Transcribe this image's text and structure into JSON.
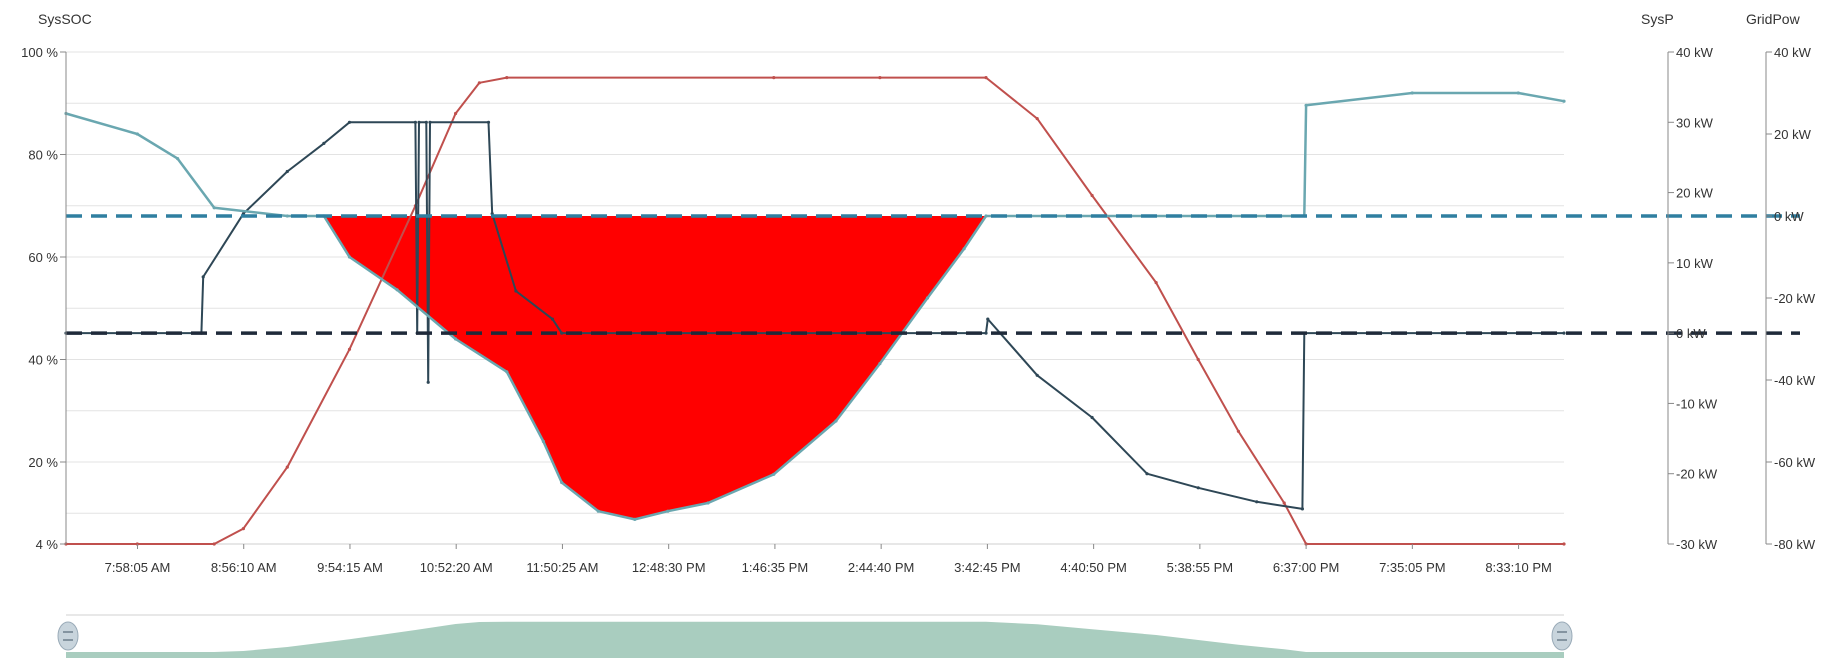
{
  "chart_data": {
    "type": "line",
    "title": "",
    "axes": {
      "soc": {
        "title": "SysSOC",
        "ticks": [
          "100 %",
          "80 %",
          "60 %",
          "40 %",
          "20 %",
          "4 %"
        ],
        "tick_values": [
          100,
          80,
          60,
          40,
          20,
          4
        ],
        "ylim": [
          4,
          100
        ]
      },
      "sysp": {
        "title": "SysP",
        "ticks": [
          "40 kW",
          "30 kW",
          "20 kW",
          "10 kW",
          "0 kW",
          "-10 kW",
          "-20 kW",
          "-30 kW"
        ],
        "tick_values": [
          40,
          30,
          20,
          10,
          0,
          -10,
          -20,
          -30
        ],
        "ylim": [
          -30,
          40
        ]
      },
      "grid": {
        "title": "GridPow",
        "ticks": [
          "40 kW",
          "20 kW",
          "0 kW",
          "-20 kW",
          "-40 kW",
          "-60 kW",
          "-80 kW"
        ],
        "tick_values": [
          40,
          20,
          0,
          -20,
          -40,
          -60,
          -80
        ],
        "ylim": [
          -80,
          40
        ]
      },
      "x": {
        "ticks": [
          "7:58:05 AM",
          "8:56:10 AM",
          "9:54:15 AM",
          "10:52:20 AM",
          "11:50:25 AM",
          "12:48:30 PM",
          "1:46:35 PM",
          "2:44:40 PM",
          "3:42:45 PM",
          "4:40:50 PM",
          "5:38:55 PM",
          "6:37:00 PM",
          "7:35:05 PM",
          "8:33:10 PM"
        ],
        "range": [
          "7:19:00 AM",
          "8:58:00 PM"
        ]
      }
    },
    "series": [
      {
        "axis": "soc",
        "color": "#c0504d",
        "points": [
          [
            "7:19 AM",
            4
          ],
          [
            "7:58 AM",
            4
          ],
          [
            "8:40 AM",
            4
          ],
          [
            "8:56 AM",
            7
          ],
          [
            "9:20 AM",
            19
          ],
          [
            "9:54 AM",
            42
          ],
          [
            "10:30 AM",
            70
          ],
          [
            "10:52 AM",
            88
          ],
          [
            "11:05 AM",
            94
          ],
          [
            "11:20 AM",
            95
          ],
          [
            "1:46 PM",
            95
          ],
          [
            "2:44 PM",
            95
          ],
          [
            "3:42 PM",
            95
          ],
          [
            "4:10 PM",
            87
          ],
          [
            "4:40 PM",
            72
          ],
          [
            "5:15 PM",
            55
          ],
          [
            "5:38 PM",
            40
          ],
          [
            "6:00 PM",
            26
          ],
          [
            "6:25 PM",
            12
          ],
          [
            "6:37 PM",
            4
          ],
          [
            "8:58 PM",
            4
          ]
        ]
      },
      {
        "axis": "sysp",
        "color": "#2e4756",
        "points": [
          [
            "7:19 AM",
            0
          ],
          [
            "8:33 AM",
            0
          ],
          [
            "8:34 AM",
            8
          ],
          [
            "8:56 AM",
            17
          ],
          [
            "9:20 AM",
            23
          ],
          [
            "9:40 AM",
            27
          ],
          [
            "9:54 AM",
            30
          ],
          [
            "10:30 AM",
            30
          ],
          [
            "10:31 AM",
            0
          ],
          [
            "10:32 AM",
            30
          ],
          [
            "10:36 AM",
            30
          ],
          [
            "10:37 AM",
            -7
          ],
          [
            "10:38 AM",
            30
          ],
          [
            "11:10 AM",
            30
          ],
          [
            "11:12 AM",
            17
          ],
          [
            "11:25 AM",
            6
          ],
          [
            "11:45 AM",
            2
          ],
          [
            "11:50 AM",
            0
          ],
          [
            "3:42 PM",
            0
          ],
          [
            "3:43 PM",
            2
          ],
          [
            "4:10 PM",
            -6
          ],
          [
            "4:40 PM",
            -12
          ],
          [
            "5:10 PM",
            -20
          ],
          [
            "5:38 PM",
            -22
          ],
          [
            "6:10 PM",
            -24
          ],
          [
            "6:35 PM",
            -25
          ],
          [
            "6:36 PM",
            0
          ],
          [
            "8:58 PM",
            0
          ]
        ]
      },
      {
        "axis": "grid",
        "color": "#6aa7b0",
        "points": [
          [
            "7:19 AM",
            25
          ],
          [
            "7:58 AM",
            20
          ],
          [
            "8:20 AM",
            14
          ],
          [
            "8:40 AM",
            2
          ],
          [
            "9:20 AM",
            0
          ],
          [
            "9:40 AM",
            0
          ],
          [
            "9:54 AM",
            -10
          ],
          [
            "10:20 AM",
            -18
          ],
          [
            "10:52 AM",
            -30
          ],
          [
            "11:20 AM",
            -38
          ],
          [
            "11:40 AM",
            -55
          ],
          [
            "11:50 AM",
            -65
          ],
          [
            "12:10 PM",
            -72
          ],
          [
            "12:30 PM",
            -74
          ],
          [
            "12:48 PM",
            -72
          ],
          [
            "1:10 PM",
            -70
          ],
          [
            "1:46 PM",
            -63
          ],
          [
            "2:20 PM",
            -50
          ],
          [
            "2:44 PM",
            -36
          ],
          [
            "3:10 PM",
            -20
          ],
          [
            "3:30 PM",
            -8
          ],
          [
            "3:42 PM",
            0
          ],
          [
            "4:40 PM",
            0
          ],
          [
            "5:38 PM",
            0
          ],
          [
            "6:30 PM",
            0
          ],
          [
            "6:36 PM",
            0
          ],
          [
            "6:37 PM",
            27
          ],
          [
            "7:35 PM",
            30
          ],
          [
            "8:33 PM",
            30
          ],
          [
            "8:58 PM",
            28
          ]
        ]
      }
    ],
    "reference_lines": [
      {
        "axis": "grid",
        "value": 0,
        "color": "#2f7fa0",
        "style": "dashed"
      },
      {
        "axis": "sysp",
        "value": 0,
        "color": "#1f2a3a",
        "style": "dashed"
      }
    ],
    "shaded_area": {
      "color": "#ff0000",
      "between": "grid series and GridPow 0 kW line",
      "from": "9:40 AM",
      "to": "3:42 PM"
    },
    "grid": true,
    "navigator": {
      "present": true,
      "color": "#a9cdbf"
    }
  }
}
